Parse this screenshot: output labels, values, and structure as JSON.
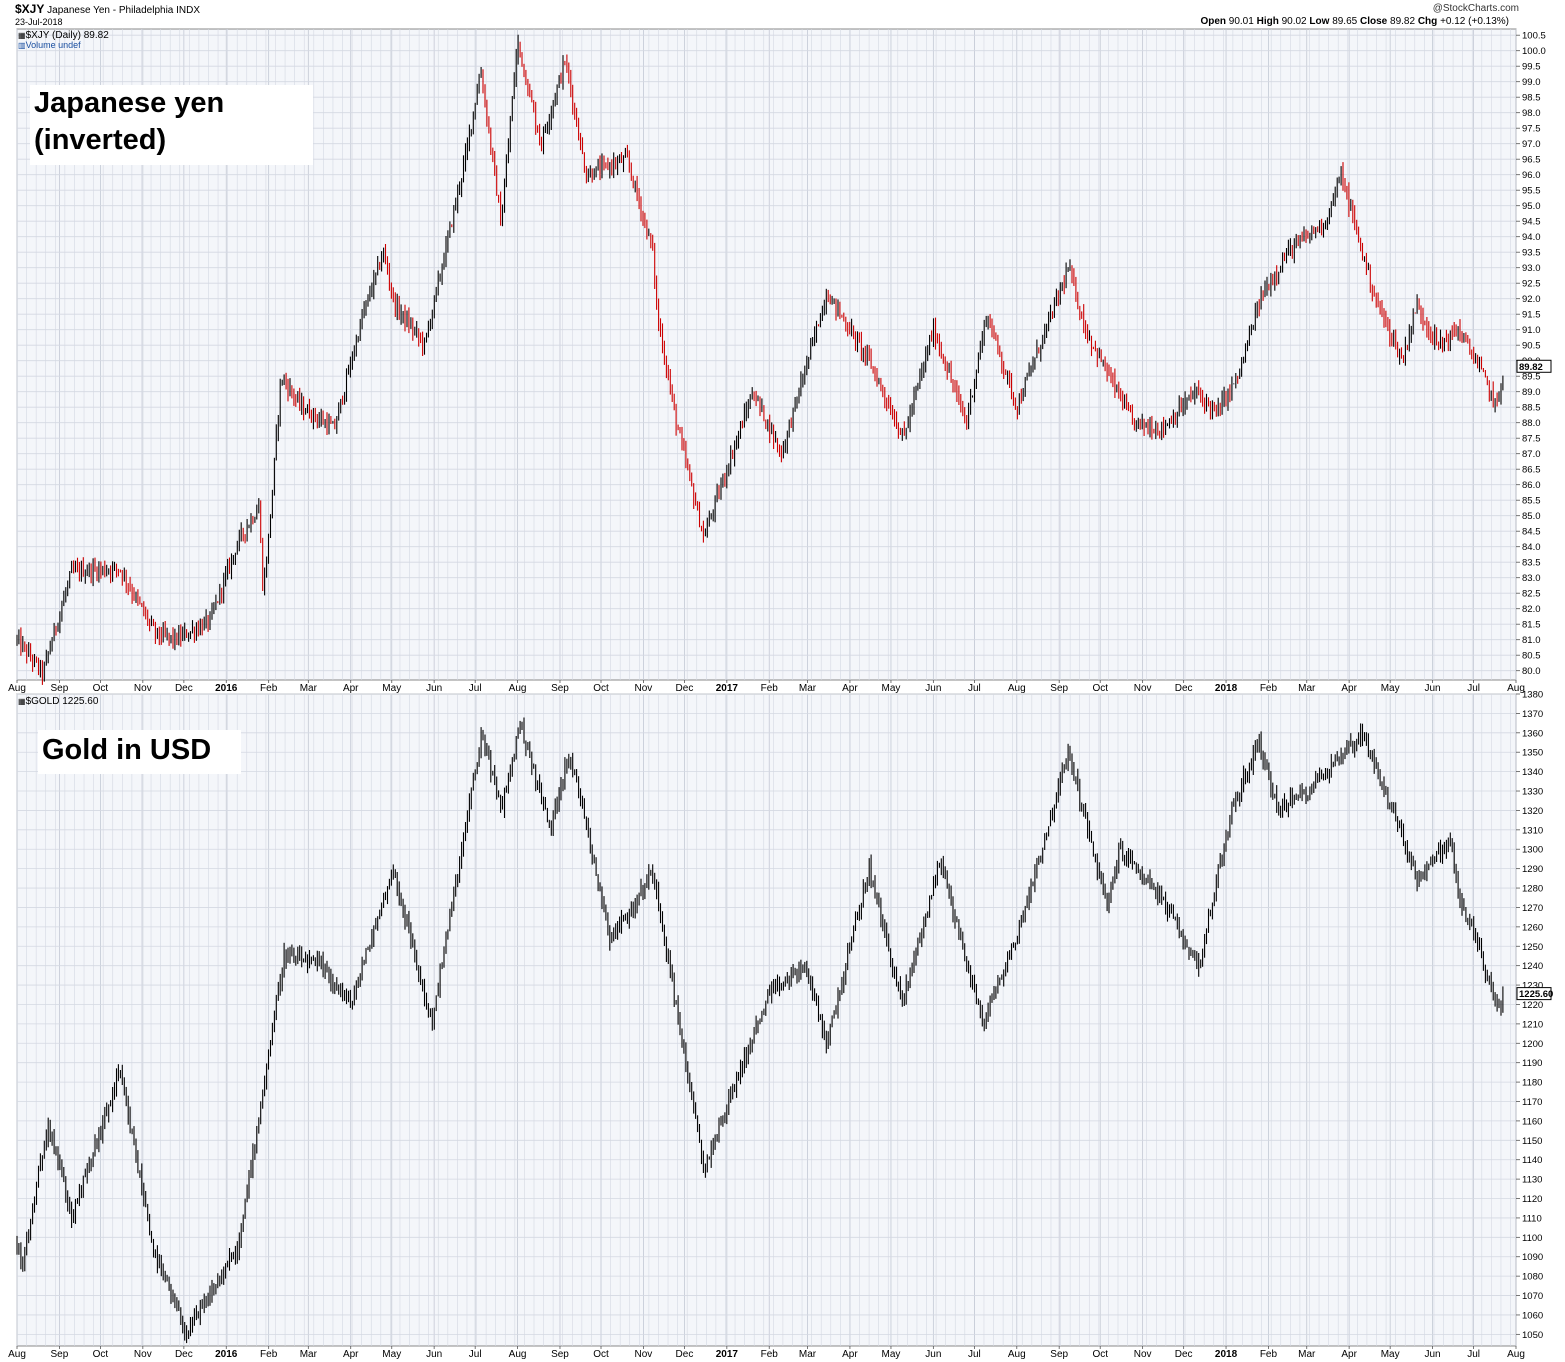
{
  "header": {
    "symbol": "$XJY",
    "name": "Japanese Yen - Philadelphia",
    "exchange": "INDX",
    "date": "23-Jul-2018",
    "brand": "@StockCharts.com",
    "quote": {
      "open_label": "Open",
      "open": "90.01",
      "high_label": "High",
      "high": "90.02",
      "low_label": "Low",
      "low": "89.65",
      "close_label": "Close",
      "close": "89.82",
      "chg_label": "Chg",
      "chg": "+0.12 (+0.13%)"
    }
  },
  "colors": {
    "up": "#000000",
    "down": "#cc0000",
    "grid": "#d4d8e2",
    "panel_bg": "#f4f6fa"
  },
  "chart_data": [
    {
      "type": "line",
      "title": "$XJY (Daily) 89.82",
      "subtitle": "Volume undef",
      "annotation": "Japanese yen\n(inverted)",
      "last_value_label": "89.82",
      "last_value": 89.82,
      "y_inverted_axis": false,
      "ylim": [
        79.7,
        100.7
      ],
      "ytick_labels": [
        "80.0",
        "80.5",
        "81.0",
        "81.5",
        "82.0",
        "82.5",
        "83.0",
        "83.5",
        "84.0",
        "84.5",
        "85.0",
        "85.5",
        "86.0",
        "86.5",
        "87.0",
        "87.5",
        "88.0",
        "88.5",
        "89.0",
        "89.5",
        "90.0",
        "90.5",
        "91.0",
        "91.5",
        "92.0",
        "92.5",
        "93.0",
        "93.5",
        "94.0",
        "94.5",
        "95.0",
        "95.5",
        "96.0",
        "96.5",
        "97.0",
        "97.5",
        "98.0",
        "98.5",
        "99.0",
        "99.5",
        "100.0",
        "100.5"
      ],
      "grid": true,
      "x": [
        "2015-08-01",
        "2015-08-20",
        "2015-08-24",
        "2015-09-10",
        "2015-10-15",
        "2015-11-10",
        "2015-11-25",
        "2015-12-20",
        "2016-01-10",
        "2016-01-25",
        "2016-01-28",
        "2016-02-02",
        "2016-02-10",
        "2016-02-25",
        "2016-03-20",
        "2016-04-10",
        "2016-04-25",
        "2016-05-03",
        "2016-05-25",
        "2016-06-10",
        "2016-06-24",
        "2016-07-05",
        "2016-07-20",
        "2016-08-01",
        "2016-08-18",
        "2016-09-05",
        "2016-09-20",
        "2016-10-20",
        "2016-11-08",
        "2016-11-11",
        "2016-11-25",
        "2016-12-15",
        "2017-01-01",
        "2017-01-20",
        "2017-02-10",
        "2017-03-15",
        "2017-04-15",
        "2017-05-10",
        "2017-06-01",
        "2017-06-25",
        "2017-07-10",
        "2017-08-01",
        "2017-09-08",
        "2017-09-20",
        "2017-10-25",
        "2017-11-15",
        "2017-12-10",
        "2017-12-25",
        "2018-01-10",
        "2018-01-26",
        "2018-02-15",
        "2018-03-15",
        "2018-03-26",
        "2018-04-20",
        "2018-05-10",
        "2018-05-20",
        "2018-06-05",
        "2018-06-20",
        "2018-07-05",
        "2018-07-18",
        "2018-07-23"
      ],
      "values": [
        81.0,
        79.9,
        80.6,
        83.2,
        83.3,
        81.2,
        81.0,
        81.6,
        84.2,
        85.3,
        82.5,
        84.8,
        89.5,
        88.5,
        87.8,
        91.5,
        93.5,
        91.8,
        90.5,
        93.7,
        96.6,
        99.4,
        94.4,
        100.3,
        97.0,
        99.7,
        96.0,
        96.5,
        93.5,
        91.5,
        88.0,
        84.3,
        86.5,
        89.0,
        87.0,
        92.2,
        90.0,
        87.5,
        91.0,
        88.0,
        91.5,
        88.5,
        93.0,
        91.0,
        88.0,
        87.8,
        89.0,
        88.3,
        89.5,
        92.0,
        93.5,
        94.5,
        96.0,
        92.0,
        90.0,
        91.8,
        90.5,
        91.0,
        89.8,
        88.5,
        89.82
      ],
      "series_color_rule": "black up, red down"
    },
    {
      "type": "line",
      "title": "$GOLD 1225.60",
      "annotation": "Gold in USD",
      "last_value_label": "1225.60",
      "last_value": 1225.6,
      "ylim": [
        1044,
        1380
      ],
      "ytick_labels": [
        "1050",
        "1060",
        "1070",
        "1080",
        "1090",
        "1100",
        "1110",
        "1120",
        "1130",
        "1140",
        "1150",
        "1160",
        "1170",
        "1180",
        "1190",
        "1200",
        "1210",
        "1220",
        "1230",
        "1240",
        "1250",
        "1260",
        "1270",
        "1280",
        "1290",
        "1300",
        "1310",
        "1320",
        "1330",
        "1340",
        "1350",
        "1360",
        "1370",
        "1380"
      ],
      "grid": true,
      "x": [
        "2015-08-01",
        "2015-08-05",
        "2015-08-24",
        "2015-09-10",
        "2015-10-15",
        "2015-11-10",
        "2015-12-03",
        "2015-12-20",
        "2016-01-10",
        "2016-02-12",
        "2016-03-10",
        "2016-04-01",
        "2016-05-02",
        "2016-05-30",
        "2016-07-06",
        "2016-07-20",
        "2016-08-03",
        "2016-08-25",
        "2016-09-07",
        "2016-09-20",
        "2016-10-07",
        "2016-10-25",
        "2016-11-08",
        "2016-12-15",
        "2017-01-10",
        "2017-02-01",
        "2017-02-27",
        "2017-03-15",
        "2017-04-15",
        "2017-05-09",
        "2017-06-06",
        "2017-07-07",
        "2017-08-01",
        "2017-09-08",
        "2017-10-06",
        "2017-10-15",
        "2017-11-10",
        "2017-12-12",
        "2018-01-05",
        "2018-01-25",
        "2018-02-08",
        "2018-03-01",
        "2018-04-11",
        "2018-05-21",
        "2018-06-14",
        "2018-06-20",
        "2018-07-05",
        "2018-07-19",
        "2018-07-23"
      ],
      "values": [
        1095,
        1085,
        1160,
        1110,
        1185,
        1090,
        1050,
        1070,
        1095,
        1245,
        1240,
        1220,
        1290,
        1210,
        1360,
        1320,
        1365,
        1310,
        1350,
        1315,
        1255,
        1270,
        1290,
        1135,
        1185,
        1225,
        1240,
        1200,
        1290,
        1220,
        1295,
        1210,
        1255,
        1350,
        1270,
        1300,
        1280,
        1240,
        1320,
        1355,
        1320,
        1330,
        1360,
        1285,
        1305,
        1275,
        1250,
        1215,
        1225.6
      ]
    }
  ],
  "x_axis": {
    "month_labels": [
      "Aug",
      "Sep",
      "Oct",
      "Nov",
      "Dec",
      "2016",
      "Feb",
      "Mar",
      "Apr",
      "May",
      "Jun",
      "Jul",
      "Aug",
      "Sep",
      "Oct",
      "Nov",
      "Dec",
      "2017",
      "Feb",
      "Mar",
      "Apr",
      "May",
      "Jun",
      "Jul",
      "Aug",
      "Sep",
      "Oct",
      "Nov",
      "Dec",
      "2018",
      "Feb",
      "Mar",
      "Apr",
      "May",
      "Jun",
      "Jul",
      "Aug"
    ],
    "year_label_indices": [
      5,
      17,
      29
    ]
  }
}
